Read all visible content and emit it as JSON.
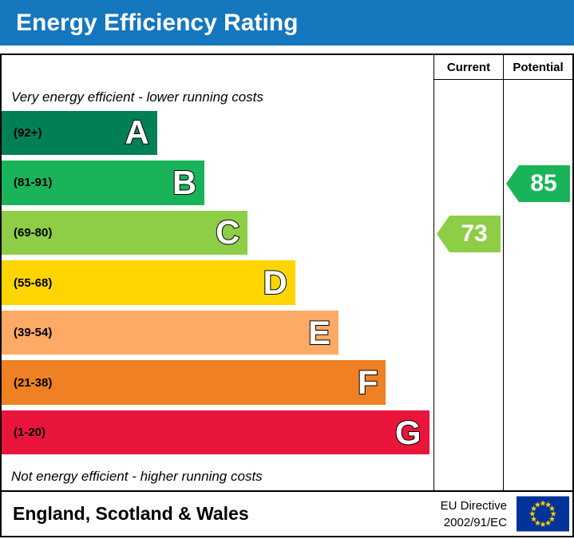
{
  "banner": {
    "title": "Energy Efficiency Rating",
    "bg": "#1577bd"
  },
  "table": {
    "current_header": "Current",
    "potential_header": "Potential"
  },
  "chart_data": {
    "type": "bar",
    "title": "Energy Efficiency Rating",
    "top_note": "Very energy efficient - lower running costs",
    "bottom_note": "Not energy efficient - higher running costs",
    "bands": [
      {
        "letter": "A",
        "range": "(92+)",
        "min": 92,
        "max": 100,
        "color": "#008054",
        "width_pct": 36
      },
      {
        "letter": "B",
        "range": "(81-91)",
        "min": 81,
        "max": 91,
        "color": "#19b459",
        "width_pct": 47
      },
      {
        "letter": "C",
        "range": "(69-80)",
        "min": 69,
        "max": 80,
        "color": "#8dce46",
        "width_pct": 57
      },
      {
        "letter": "D",
        "range": "(55-68)",
        "min": 55,
        "max": 68,
        "color": "#ffd500",
        "width_pct": 68
      },
      {
        "letter": "E",
        "range": "(39-54)",
        "min": 39,
        "max": 54,
        "color": "#fcaa65",
        "width_pct": 78
      },
      {
        "letter": "F",
        "range": "(21-38)",
        "min": 21,
        "max": 38,
        "color": "#ef8023",
        "width_pct": 89
      },
      {
        "letter": "G",
        "range": "(1-20)",
        "min": 1,
        "max": 20,
        "color": "#e9153b",
        "width_pct": 99
      }
    ],
    "current": {
      "value": 73,
      "band": "C",
      "color": "#8dce46"
    },
    "potential": {
      "value": 85,
      "band": "B",
      "color": "#19b459"
    }
  },
  "footer": {
    "region": "England, Scotland & Wales",
    "directive": [
      "EU Directive",
      "2002/91/EC"
    ]
  }
}
